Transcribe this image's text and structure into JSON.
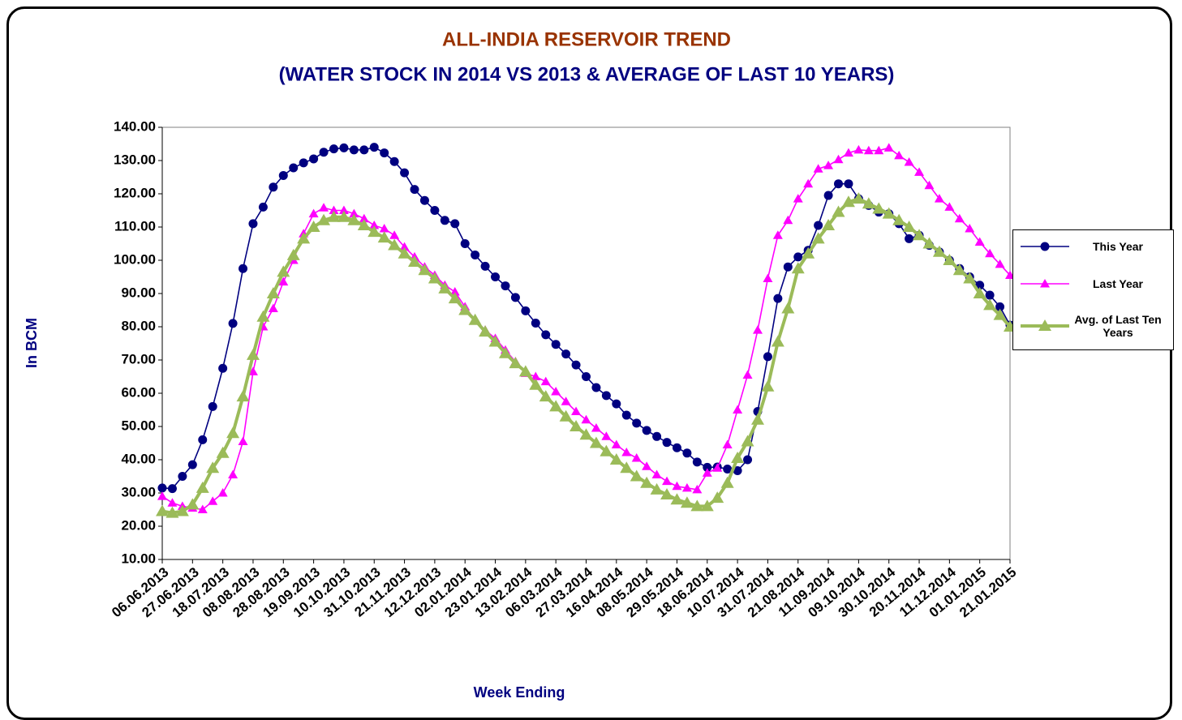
{
  "chart_data": {
    "type": "line",
    "title": "ALL-INDIA RESERVOIR TREND",
    "subtitle": "(WATER STOCK IN 2014 VS 2013 & AVERAGE OF LAST 10 YEARS)",
    "y_label": "In BCM",
    "x_label": "Week Ending",
    "categories": [
      "06.06.2013",
      null,
      null,
      "27.06.2013",
      null,
      null,
      "18.07.2013",
      null,
      null,
      "08.08.2013",
      null,
      null,
      "28.08.2013",
      null,
      null,
      "19.09.2013",
      null,
      null,
      "10.10.2013",
      null,
      null,
      "31.10.2013",
      null,
      null,
      "21.11.2013",
      null,
      null,
      "12.12.2013",
      null,
      null,
      "02.01.2014",
      null,
      null,
      "23.01.2014",
      null,
      null,
      "13.02.2014",
      null,
      null,
      "06.03.2014",
      null,
      null,
      "27.03.2014",
      null,
      null,
      "16.04.2014",
      null,
      null,
      "08.05.2014",
      null,
      null,
      "29.05.2014",
      null,
      null,
      "18.06.2014",
      null,
      null,
      "10.07.2014",
      null,
      null,
      "31.07.2014",
      null,
      null,
      "21.08.2014",
      null,
      null,
      "11.09.2014",
      null,
      null,
      "09.10.2014",
      null,
      null,
      "30.10.2014",
      null,
      null,
      "20.11.2014",
      null,
      null,
      "11.12.2014",
      null,
      null,
      "01.01.2015",
      null,
      null,
      "21.01.2015"
    ],
    "series": [
      {
        "name": "This Year",
        "color": "#000080",
        "marker": "circle",
        "values": [
          31.5,
          31.3,
          35,
          38.5,
          46,
          56,
          67.5,
          81,
          97.5,
          111,
          116,
          122,
          125.5,
          127.8,
          129.3,
          130.5,
          132.5,
          133.5,
          133.8,
          133.2,
          133.2,
          134,
          132.3,
          129.7,
          126.3,
          121.3,
          118,
          115,
          112,
          111,
          105,
          101.6,
          98.2,
          95,
          92.3,
          88.8,
          84.8,
          81.1,
          77.6,
          74.7,
          71.8,
          68.5,
          65,
          61.7,
          59.3,
          56.8,
          53.4,
          51,
          48.8,
          47,
          45.2,
          43.6,
          42,
          39.3,
          37.7,
          37.8,
          37.2,
          36.7,
          40,
          54.5,
          71,
          88.5,
          98,
          101,
          103,
          110.5,
          119.5,
          123,
          123,
          118.5,
          116.5,
          114.5,
          114,
          111,
          106.5,
          107.5,
          104.5,
          102.5,
          100,
          97.5,
          95,
          92.5,
          89.5,
          86,
          80.5
        ]
      },
      {
        "name": "Last Year",
        "color": "#ff00ff",
        "marker": "triangle",
        "values": [
          29,
          27,
          26,
          25.5,
          25,
          27.5,
          30,
          35.5,
          45.5,
          66.5,
          80,
          85.5,
          93.5,
          100,
          108,
          114,
          115.8,
          115,
          115,
          114,
          112.5,
          110.5,
          109.5,
          107.5,
          104,
          101,
          98,
          95.5,
          92.5,
          90.5,
          86,
          82,
          79,
          76.5,
          73,
          69.5,
          66,
          65,
          63.5,
          60.5,
          57.5,
          54.5,
          52,
          49.5,
          47,
          44.5,
          42.2,
          40.5,
          38,
          35.5,
          33.5,
          32,
          31.5,
          31,
          36,
          37.5,
          44.5,
          55,
          65.5,
          79,
          94.5,
          107.5,
          112,
          118.5,
          123,
          127.5,
          128.5,
          130.3,
          132.3,
          133.2,
          133,
          133,
          133.8,
          131.5,
          129.5,
          126.5,
          122.5,
          118.5,
          116,
          112.5,
          109.5,
          105.5,
          102,
          98.8,
          95.5
        ]
      },
      {
        "name": "Avg. of Last Ten Years",
        "color": "#9bbb59",
        "marker": "triangle",
        "values": [
          24.5,
          24,
          24.5,
          26.5,
          31.5,
          37.5,
          42,
          48,
          59,
          71.5,
          83,
          90,
          96.5,
          101.5,
          106.5,
          110,
          112,
          113,
          113,
          112,
          110.5,
          108.5,
          106.8,
          104.5,
          102,
          99.5,
          97,
          94.5,
          91.5,
          88.5,
          85,
          82,
          78.5,
          75.5,
          72,
          69,
          66.5,
          62.5,
          59,
          56,
          53,
          50,
          47.5,
          45,
          42.5,
          40,
          37.5,
          35,
          33,
          31,
          29.5,
          28,
          27,
          26,
          26,
          28.5,
          33,
          40.5,
          45.5,
          52,
          62,
          75.5,
          85.5,
          97.5,
          102,
          106.5,
          110.5,
          114.5,
          117.5,
          118.5,
          117,
          115.5,
          114,
          112,
          110,
          107.5,
          105,
          102.5,
          100,
          97,
          94.5,
          90,
          86.5,
          83.5,
          80
        ]
      }
    ],
    "ylim": [
      10,
      140
    ],
    "yticks": [
      {
        "value": 10,
        "label": "10.00"
      },
      {
        "value": 20,
        "label": "20.00"
      },
      {
        "value": 30,
        "label": "30.00"
      },
      {
        "value": 40,
        "label": "40.00"
      },
      {
        "value": 50,
        "label": "50.00"
      },
      {
        "value": 60,
        "label": "60.00"
      },
      {
        "value": 70,
        "label": "70.00"
      },
      {
        "value": 80,
        "label": "80.00"
      },
      {
        "value": 90,
        "label": "90.00"
      },
      {
        "value": 100,
        "label": "100.00"
      },
      {
        "value": 110,
        "label": "110.00"
      },
      {
        "value": 120,
        "label": "120.00"
      },
      {
        "value": 130,
        "label": "130.00"
      },
      {
        "value": 140,
        "label": "140.00"
      }
    ],
    "grid": false,
    "legend": "right"
  }
}
